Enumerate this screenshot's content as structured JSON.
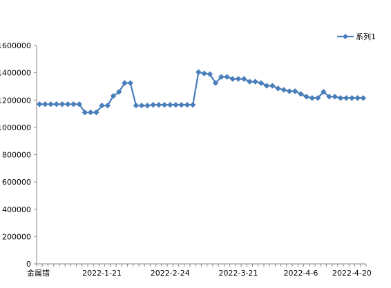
{
  "chart_data": {
    "type": "line",
    "x_labels_shown": [
      "金属错",
      "2022-1-21",
      "2022-2-24",
      "2022-3-21",
      "2022-4-6",
      "2022-4-20"
    ],
    "ylim": [
      0,
      1600000
    ],
    "y_ticks": [
      "0",
      "200000",
      "400000",
      "600000",
      "800000",
      "1000000",
      "1200000",
      "1400000",
      "1600000"
    ],
    "grid": false,
    "legend_position": "top-right",
    "series": [
      {
        "name": "系列1",
        "color": "#4A7EBB",
        "marker": "diamond",
        "values": [
          1170000,
          1170000,
          1170000,
          1170000,
          1170000,
          1170000,
          1170000,
          1170000,
          1110000,
          1110000,
          1110000,
          1160000,
          1160000,
          1230000,
          1260000,
          1325000,
          1325000,
          1160000,
          1160000,
          1160000,
          1165000,
          1165000,
          1165000,
          1165000,
          1165000,
          1165000,
          1165000,
          1165000,
          1405000,
          1395000,
          1390000,
          1325000,
          1370000,
          1370000,
          1355000,
          1355000,
          1355000,
          1335000,
          1335000,
          1325000,
          1305000,
          1305000,
          1285000,
          1275000,
          1265000,
          1265000,
          1245000,
          1225000,
          1215000,
          1215000,
          1260000,
          1225000,
          1225000,
          1215000,
          1215000,
          1215000,
          1215000,
          1215000
        ]
      }
    ]
  }
}
